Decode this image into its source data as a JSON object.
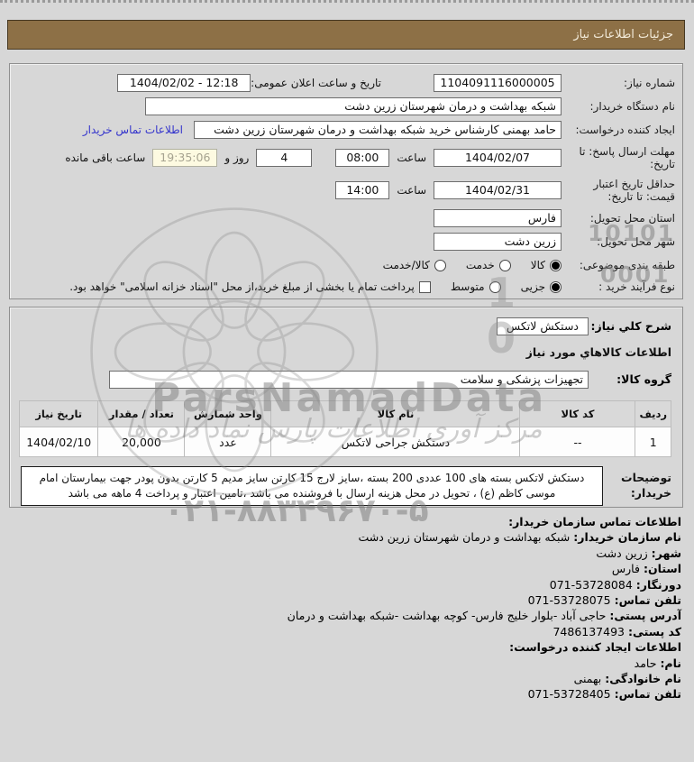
{
  "page": {
    "title_bar": "جزئیات اطلاعات نیاز"
  },
  "form": {
    "need_number_label": "شماره نیاز:",
    "need_number": "1104091116000005",
    "announce_label": "تاریخ و ساعت اعلان عمومی:",
    "announce_value": "1404/02/02 - 12:18",
    "buyer_org_label": "نام دستگاه خریدار:",
    "buyer_org": "شبکه بهداشت و درمان شهرستان زرین دشت",
    "creator_label": "ایجاد کننده درخواست:",
    "creator": "حامد بهمنی کارشناس خرید شبکه بهداشت و درمان شهرستان زرین دشت",
    "contact_link": "اطلاعات تماس خریدار",
    "deadline_label": "مهلت ارسال پاسخ: تا تاریخ:",
    "deadline_date": "1404/02/07",
    "hour_label": "ساعت",
    "deadline_time": "08:00",
    "days_left": "4",
    "days_and_label": "روز و",
    "countdown": "19:35:06",
    "hours_left_label": "ساعت باقی مانده",
    "validity_label": "حداقل تاریخ اعتبار قیمت: تا تاریخ:",
    "validity_date": "1404/02/31",
    "validity_time": "14:00",
    "province_label": "استان محل تحویل:",
    "province": "فارس",
    "city_label": "شهر محل تحویل:",
    "city": "زرین دشت",
    "classification_label": "طبقه بندی موضوعی:",
    "classification_options": [
      {
        "label": "کالا",
        "selected": true
      },
      {
        "label": "خدمت",
        "selected": false
      },
      {
        "label": "کالا/خدمت",
        "selected": false
      }
    ],
    "process_label": "نوع فرآیند خرید :",
    "process_options": [
      {
        "label": "جزیی",
        "selected": true
      },
      {
        "label": "متوسط",
        "selected": false
      }
    ],
    "treasury_checkbox_label": "پرداخت تمام یا بخشی از مبلغ خرید،از محل \"اسناد خزانه اسلامی\" خواهد بود.",
    "treasury_checked": false
  },
  "goods": {
    "desc_label": "شرح کلي نیاز:",
    "desc_value": "دستکش لاتکس",
    "section_title": "اطلاعات کالاهاي مورد نیاز",
    "group_label": "گروه کالا:",
    "group_value": "تجهیزات پزشکی و سلامت",
    "table": {
      "headers": [
        "ردیف",
        "کد کالا",
        "نام کالا",
        "واحد شمارش",
        "تعداد / مقدار",
        "تاریخ نیاز"
      ],
      "rows": [
        [
          "1",
          "--",
          "دستکش جراحی لاتکس",
          "عدد",
          "20,000",
          "1404/02/10"
        ]
      ]
    },
    "notes_label": "توضیحات خریدار:",
    "notes": "دستکش لاتکس بسته های 100 عددی 200 بسته ،سایز لارج 15 کارتن سایز مدیم 5 کارتن بدون پودر جهت بیمارستان امام موسی کاظم (ع) ، تحویل در محل هزینه ارسال با فروشنده می باشد ،تامین اعتبار و پرداخت 4 ماهه می باشد"
  },
  "footer": {
    "contact_title": "اطلاعات تماس سازمان خریدار:",
    "contact_lines": [
      {
        "label": "نام سازمان خریدار:",
        "value": "شبکه بهداشت و درمان شهرستان زرین دشت"
      },
      {
        "label": "شهر:",
        "value": "زرین دشت"
      },
      {
        "label": "استان:",
        "value": "فارس"
      },
      {
        "label": "دورنگار:",
        "value": "53728084-071"
      },
      {
        "label": "تلفن تماس:",
        "value": "53728075-071"
      },
      {
        "label": "آدرس پستی:",
        "value": "حاجی آباد -بلوار خلیج فارس- کوچه بهداشت -شبکه بهداشت و درمان"
      },
      {
        "label": "کد پستی:",
        "value": "7486137493"
      }
    ],
    "creator_title": "اطلاعات ایجاد کننده درخواست:",
    "creator_lines": [
      {
        "label": "نام:",
        "value": "حامد"
      },
      {
        "label": "نام خانوادگی:",
        "value": "بهمنی"
      },
      {
        "label": "تلفن تماس:",
        "value": "53728405-071"
      }
    ]
  },
  "watermark": {
    "brand": "ParsNamadData",
    "script": "مرکز آوری اطلاعات پارس نماد داده ها",
    "phone": "۰۲۱-۸۸۳۴۹۶۷۰-۵",
    "digits_h1": "10101",
    "digits_h2": "0001",
    "digits_v": "10"
  },
  "colors": {
    "title_bar_bg": "#8d7046",
    "link_blue": "#3333cc",
    "countdown_bg": "#fdfae1"
  }
}
